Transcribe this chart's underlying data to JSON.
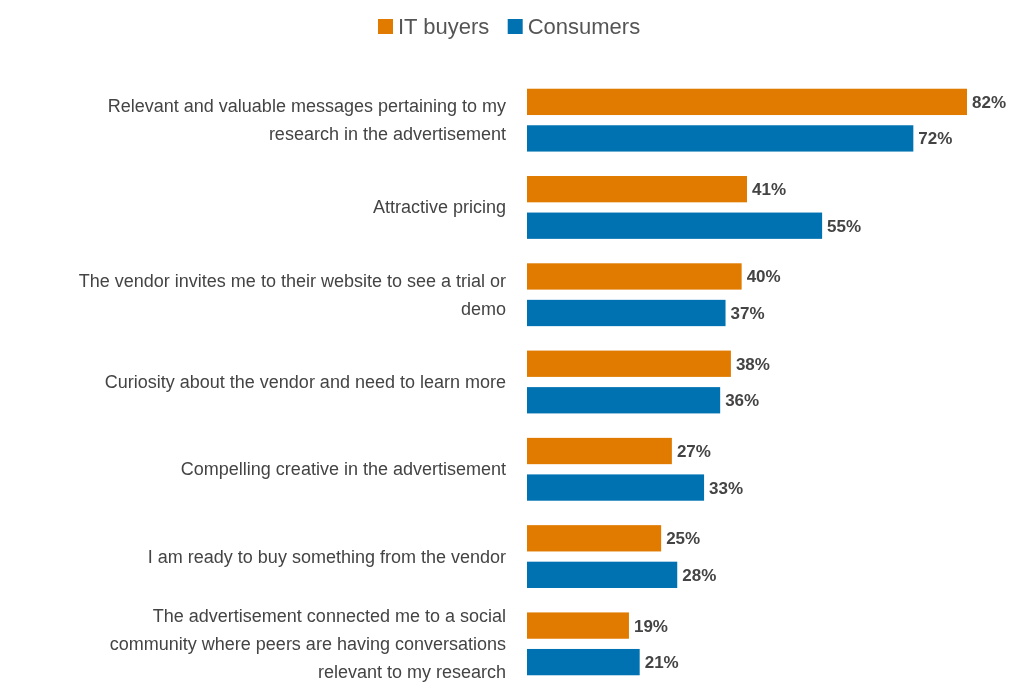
{
  "chart_data": {
    "type": "bar",
    "orientation": "horizontal",
    "legend": "top",
    "categories": [
      "Relevant and valuable messages pertaining to my research in the advertisement",
      "Attractive pricing",
      "The vendor invites me to their website to see a trial or demo",
      "Curiosity about the vendor and need to learn more",
      "Compelling creative in the advertisement",
      "I am ready to buy something from the vendor",
      "The advertisement connected me to a social community where peers are having conversations relevant to my research"
    ],
    "series": [
      {
        "name": "IT buyers",
        "color": "#e07b00",
        "values": [
          82,
          41,
          40,
          38,
          27,
          25,
          19
        ],
        "value_labels": [
          "82%",
          "41%",
          "40%",
          "38%",
          "27%",
          "25%",
          "19%"
        ]
      },
      {
        "name": "Consumers",
        "color": "#0072b2",
        "values": [
          72,
          55,
          37,
          36,
          33,
          28,
          21
        ],
        "value_labels": [
          "72%",
          "55%",
          "37%",
          "36%",
          "33%",
          "28%",
          "21%"
        ]
      }
    ]
  }
}
